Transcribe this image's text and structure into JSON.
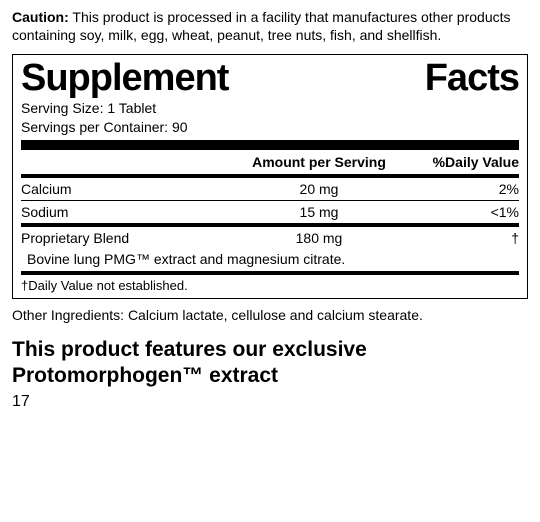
{
  "caution": {
    "label": "Caution:",
    "text": " This product is processed in a facility that manufactures other products containing soy, milk, egg, wheat, peanut, tree nuts, fish, and shellfish."
  },
  "panel": {
    "title_left": "Supplement",
    "title_right": "Facts",
    "serving_size": "Serving Size: 1 Tablet",
    "servings_per_container": "Servings per Container: 90",
    "header_amount": "Amount per Serving",
    "header_dv": "%Daily Value",
    "rows": [
      {
        "name": "Calcium",
        "amount": "20 mg",
        "dv": "2%"
      },
      {
        "name": "Sodium",
        "amount": "15 mg",
        "dv": "<1%"
      }
    ],
    "blend": {
      "name": "Proprietary Blend",
      "amount": "180 mg",
      "dv": "†",
      "description": "Bovine lung PMG™ extract and magnesium citrate."
    },
    "footnote": "†Daily Value not established."
  },
  "other_ingredients": "Other Ingredients: Calcium lactate, cellulose and calcium stearate.",
  "feature_line": "This product features our exclusive Protomorphogen™ extract",
  "page_number": "17"
}
